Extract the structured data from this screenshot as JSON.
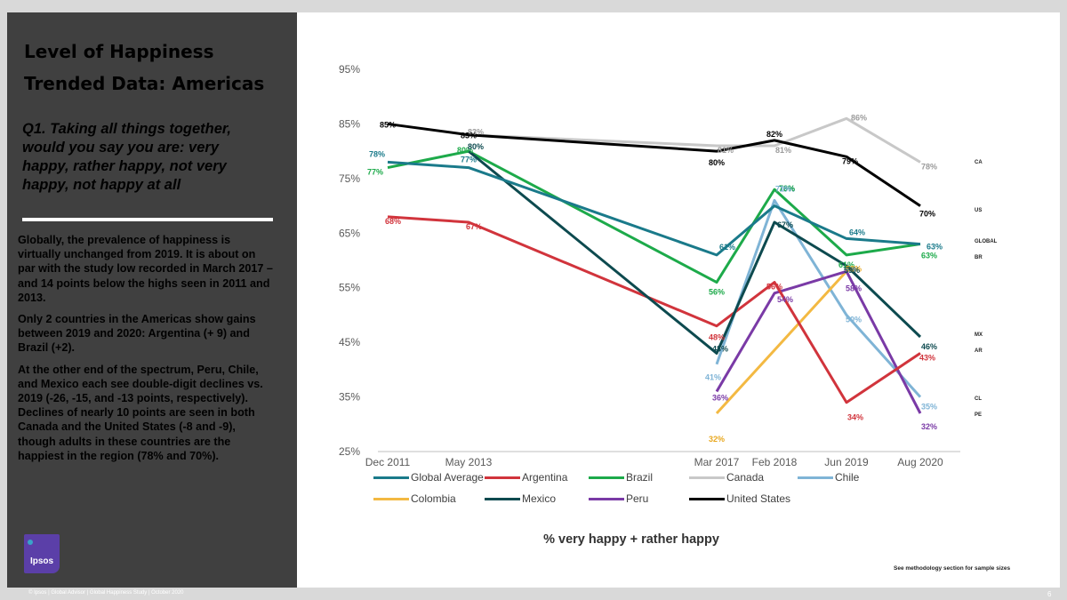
{
  "panel": {
    "title_line1": "Level of Happiness",
    "title_line2": "Trended Data: Americas",
    "question": "Q1. Taking all things together, would you say you are: very happy, rather happy, not very happy, not happy at all",
    "para1": "Globally, the prevalence of happiness is virtually unchanged from 2019. It is about on par with the study low recorded in March 2017 – and 14 points below the highs seen in 2011 and 2013.",
    "para2": "Only 2 countries in the Americas show gains between 2019 and 2020: Argentina (+ 9) and Brazil (+2).",
    "para3": "At the other end of the spectrum, Peru, Chile, and Mexico each see double-digit declines vs. 2019 (-26, -15, and -13 points, respectively). Declines of nearly 10 points are seen in both Canada and the United States (-8 and -9), though adults in these countries are the happiest in the region (78% and 70%).",
    "logo": "Ipsos"
  },
  "footer": "© Ipsos | Global Advisor | Global Happiness Study | October 2020",
  "page_number": "6",
  "methodology_note": "See methodology section for sample sizes",
  "colors": {
    "Global Average": "#1a7a8a",
    "Argentina": "#d1343c",
    "Brazil": "#1daa4a",
    "Canada": "#c8c8c8",
    "Chile": "#7fb4d6",
    "Colombia": "#f3b942",
    "Mexico": "#0d4a4f",
    "Peru": "#7a3aa6",
    "United States": "#000000"
  },
  "chart_data": {
    "type": "line",
    "title": "",
    "xlabel": "% very happy + rather happy",
    "ylabel": "",
    "categories": [
      "Dec 2011",
      "May 2013",
      "Mar 2017",
      "Feb 2018",
      "Jun 2019",
      "Aug 2020"
    ],
    "x_years": [
      2011.92,
      2013.38,
      2017.17,
      2018.08,
      2019.42,
      2020.58
    ],
    "ylim": [
      25,
      95
    ],
    "yticks": [
      "95%",
      "85%",
      "75%",
      "65%",
      "55%",
      "45%",
      "35%",
      "25%"
    ],
    "series": [
      {
        "name": "Global Average",
        "code": "GLOBAL",
        "values": [
          78,
          77,
          61,
          70,
          64,
          63
        ]
      },
      {
        "name": "Argentina",
        "code": "AR",
        "values": [
          68,
          67,
          48,
          56,
          34,
          43
        ]
      },
      {
        "name": "Brazil",
        "code": "BR",
        "values": [
          77,
          80,
          56,
          73,
          61,
          63
        ]
      },
      {
        "name": "Canada",
        "code": "CA",
        "values": [
          null,
          83,
          81,
          81,
          86,
          78
        ]
      },
      {
        "name": "Chile",
        "code": "CL",
        "values": [
          null,
          null,
          41,
          71,
          50,
          35
        ]
      },
      {
        "name": "Colombia",
        "code": "",
        "values": [
          null,
          null,
          32,
          null,
          58,
          null
        ]
      },
      {
        "name": "Mexico",
        "code": "MX",
        "values": [
          null,
          80,
          43,
          67,
          59,
          46
        ]
      },
      {
        "name": "Peru",
        "code": "PE",
        "values": [
          null,
          null,
          36,
          54,
          58,
          32
        ]
      },
      {
        "name": "United States",
        "code": "US",
        "values": [
          85,
          83,
          80,
          82,
          79,
          70
        ]
      }
    ],
    "legend_labels": [
      "Global Average",
      "Argentina",
      "Brazil",
      "Canada",
      "Chile",
      "Colombia",
      "Mexico",
      "Peru",
      "United States"
    ]
  }
}
